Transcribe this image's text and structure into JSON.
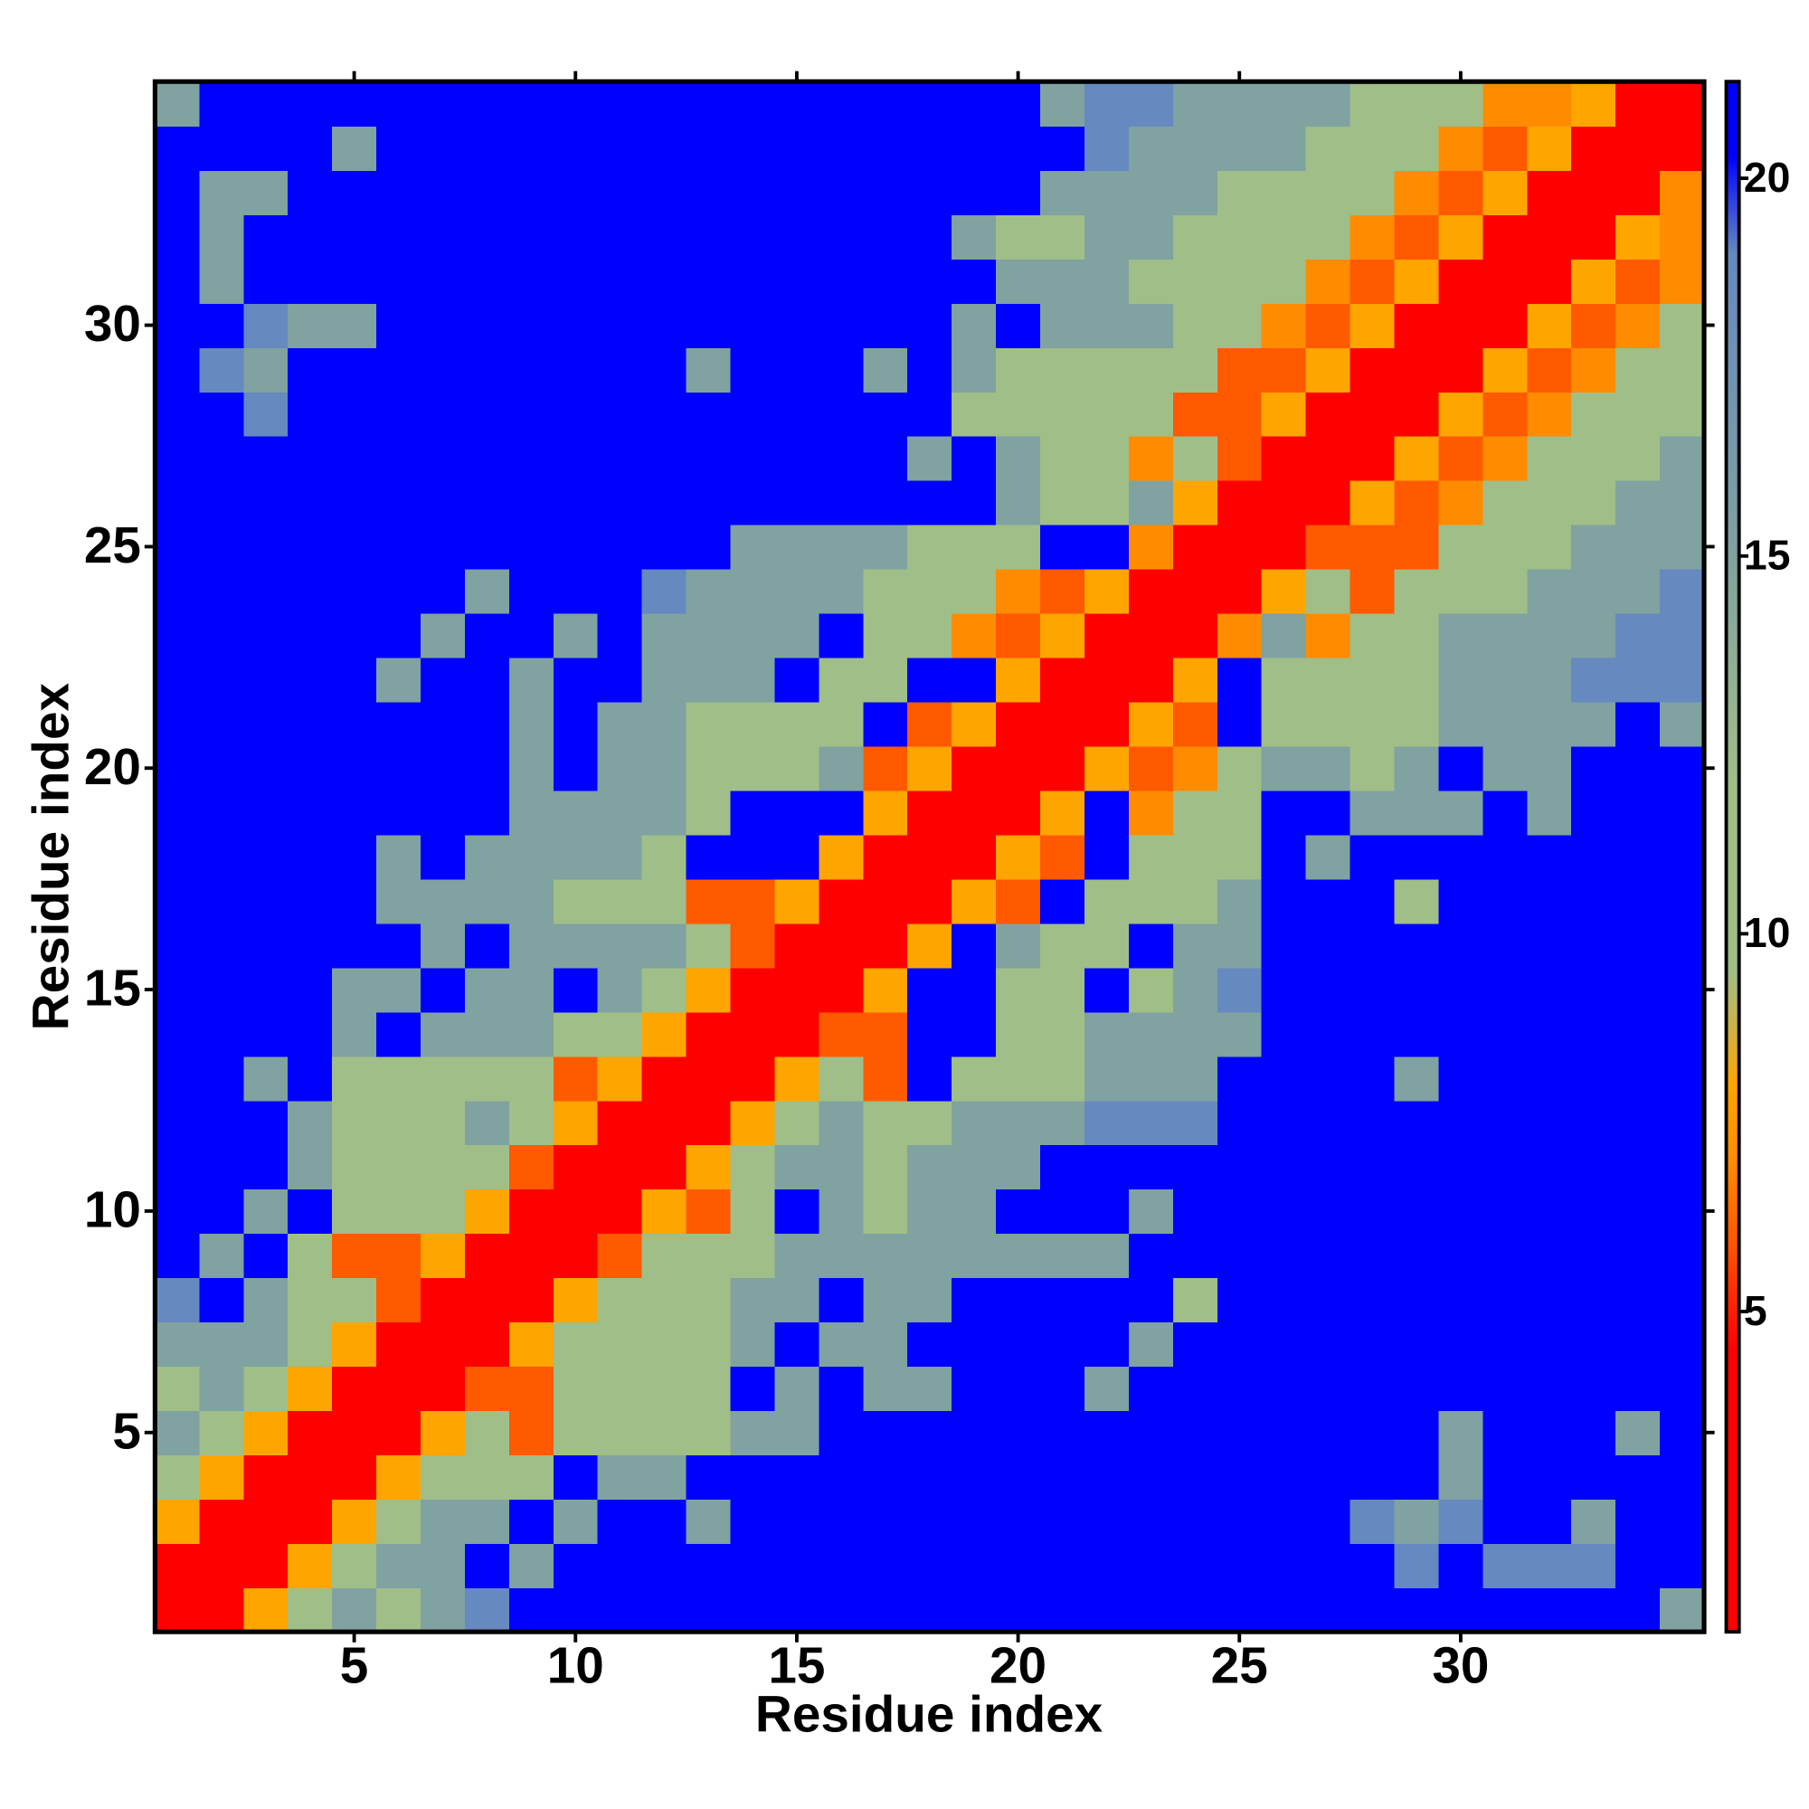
{
  "chart_data": {
    "type": "heatmap",
    "x_label": "Residue index",
    "y_label": "Residue index",
    "x": [
      1,
      2,
      3,
      4,
      5,
      6,
      7,
      8,
      9,
      10,
      11,
      12,
      13,
      14,
      15,
      16,
      17,
      18,
      19,
      20,
      21,
      22,
      23,
      24,
      25,
      26,
      27,
      28,
      29,
      30,
      31,
      32,
      33,
      34,
      35
    ],
    "y": [
      1,
      2,
      3,
      4,
      5,
      6,
      7,
      8,
      9,
      10,
      11,
      12,
      13,
      14,
      15,
      16,
      17,
      18,
      19,
      20,
      21,
      22,
      23,
      24,
      25,
      26,
      27,
      28,
      29,
      30,
      31,
      32,
      33,
      34,
      35
    ],
    "xlim": [
      0.5,
      35.5
    ],
    "ylim": [
      0.5,
      35.5
    ],
    "xticks": [
      5,
      10,
      15,
      20,
      25,
      30
    ],
    "yticks": [
      5,
      10,
      15,
      20,
      25,
      30
    ],
    "colorbar": {
      "zlim": [
        0.76,
        21.28
      ],
      "ticks": [
        5,
        10,
        15,
        20
      ]
    },
    "colorscale": [
      [
        0.76,
        "#ff0000"
      ],
      [
        4.5,
        "#ff0000"
      ],
      [
        6,
        "#ff5a00"
      ],
      [
        7,
        "#ff8c00"
      ],
      [
        8,
        "#ffa500"
      ],
      [
        9.5,
        "#a0be88"
      ],
      [
        12,
        "#a0be88"
      ],
      [
        15,
        "#80a2a0"
      ],
      [
        19,
        "#6689bf"
      ],
      [
        20.3,
        "#0000ff"
      ],
      [
        21.28,
        "#0000ff"
      ]
    ],
    "z": [
      [
        3,
        3,
        8,
        11,
        15,
        11,
        15,
        19,
        21,
        21,
        21,
        21,
        21,
        21,
        21,
        21,
        21,
        21,
        21,
        21,
        21,
        21,
        21,
        21,
        21,
        21,
        21,
        21,
        21,
        21,
        21,
        21,
        21,
        21,
        15
      ],
      [
        3,
        3,
        3,
        8,
        11,
        15,
        15,
        21,
        15,
        21,
        21,
        21,
        21,
        21,
        21,
        21,
        21,
        21,
        21,
        21,
        21,
        21,
        21,
        21,
        21,
        21,
        21,
        21,
        19,
        21,
        19,
        19,
        19,
        21,
        21
      ],
      [
        8,
        3,
        3,
        3,
        8,
        11,
        15,
        15,
        21,
        15,
        21,
        21,
        15,
        21,
        21,
        21,
        21,
        21,
        21,
        21,
        21,
        21,
        21,
        21,
        21,
        21,
        21,
        19,
        15,
        19,
        21,
        21,
        15,
        21,
        21
      ],
      [
        11,
        8,
        3,
        3,
        3,
        8,
        11,
        11,
        11,
        21,
        15,
        15,
        21,
        21,
        21,
        21,
        21,
        21,
        21,
        21,
        21,
        21,
        21,
        21,
        21,
        21,
        21,
        21,
        21,
        15,
        21,
        21,
        21,
        21,
        21
      ],
      [
        15,
        11,
        8,
        3,
        3,
        3,
        8,
        11,
        6,
        11,
        11,
        11,
        11,
        15,
        15,
        21,
        21,
        21,
        21,
        21,
        21,
        21,
        21,
        21,
        21,
        21,
        21,
        21,
        21,
        15,
        21,
        21,
        21,
        15,
        21
      ],
      [
        11,
        15,
        11,
        8,
        3,
        3,
        3,
        6,
        6,
        11,
        11,
        11,
        11,
        21,
        15,
        21,
        15,
        15,
        21,
        21,
        21,
        15,
        21,
        21,
        21,
        21,
        21,
        21,
        21,
        21,
        21,
        21,
        21,
        21,
        21
      ],
      [
        15,
        15,
        15,
        11,
        8,
        3,
        3,
        3,
        8,
        11,
        11,
        11,
        11,
        15,
        21,
        15,
        15,
        21,
        21,
        21,
        21,
        21,
        15,
        21,
        21,
        21,
        21,
        21,
        21,
        21,
        21,
        21,
        21,
        21,
        21
      ],
      [
        19,
        21,
        15,
        11,
        11,
        6,
        3,
        3,
        3,
        8,
        11,
        11,
        11,
        15,
        15,
        21,
        15,
        15,
        21,
        21,
        21,
        21,
        21,
        11,
        21,
        21,
        21,
        21,
        21,
        21,
        21,
        21,
        21,
        21,
        21
      ],
      [
        21,
        15,
        21,
        11,
        6,
        6,
        8,
        3,
        3,
        3,
        6,
        11,
        11,
        11,
        15,
        15,
        15,
        15,
        15,
        15,
        15,
        15,
        21,
        21,
        21,
        21,
        21,
        21,
        21,
        21,
        21,
        21,
        21,
        21,
        21
      ],
      [
        21,
        21,
        15,
        21,
        11,
        11,
        11,
        8,
        3,
        3,
        3,
        8,
        6,
        11,
        21,
        15,
        11,
        15,
        15,
        21,
        21,
        21,
        15,
        21,
        21,
        21,
        21,
        21,
        21,
        21,
        21,
        21,
        21,
        21,
        21
      ],
      [
        21,
        21,
        21,
        15,
        11,
        11,
        11,
        11,
        6,
        3,
        3,
        3,
        8,
        11,
        15,
        15,
        11,
        15,
        15,
        15,
        21,
        21,
        21,
        21,
        21,
        21,
        21,
        21,
        21,
        21,
        21,
        21,
        21,
        21,
        21
      ],
      [
        21,
        21,
        21,
        15,
        11,
        11,
        11,
        15,
        11,
        8,
        3,
        3,
        3,
        8,
        11,
        15,
        11,
        11,
        15,
        15,
        15,
        19,
        19,
        19,
        21,
        21,
        21,
        21,
        21,
        21,
        21,
        21,
        21,
        21,
        21
      ],
      [
        21,
        21,
        15,
        21,
        11,
        11,
        11,
        11,
        11,
        6,
        8,
        3,
        3,
        3,
        8,
        11,
        6,
        21,
        11,
        11,
        11,
        15,
        15,
        15,
        21,
        21,
        21,
        21,
        15,
        21,
        21,
        21,
        21,
        21,
        21
      ],
      [
        21,
        21,
        21,
        21,
        15,
        21,
        15,
        15,
        15,
        11,
        11,
        8,
        3,
        3,
        3,
        6,
        6,
        21,
        21,
        11,
        11,
        15,
        15,
        15,
        15,
        21,
        21,
        21,
        21,
        21,
        21,
        21,
        21,
        21,
        21
      ],
      [
        21,
        21,
        21,
        21,
        15,
        15,
        21,
        15,
        15,
        21,
        15,
        11,
        8,
        3,
        3,
        3,
        8,
        21,
        21,
        11,
        11,
        21,
        11,
        15,
        19,
        21,
        21,
        21,
        21,
        21,
        21,
        21,
        21,
        21,
        21
      ],
      [
        21,
        21,
        21,
        21,
        21,
        21,
        15,
        21,
        15,
        15,
        15,
        15,
        11,
        6,
        3,
        3,
        3,
        8,
        21,
        15,
        11,
        11,
        21,
        15,
        15,
        21,
        21,
        21,
        21,
        21,
        21,
        21,
        21,
        21,
        21
      ],
      [
        21,
        21,
        21,
        21,
        21,
        15,
        15,
        15,
        15,
        11,
        11,
        11,
        6,
        6,
        8,
        3,
        3,
        3,
        8,
        6,
        21,
        11,
        11,
        11,
        15,
        21,
        21,
        21,
        11,
        21,
        21,
        21,
        21,
        21,
        21
      ],
      [
        21,
        21,
        21,
        21,
        21,
        15,
        21,
        15,
        15,
        15,
        15,
        11,
        21,
        21,
        21,
        8,
        3,
        3,
        3,
        8,
        6,
        21,
        11,
        11,
        11,
        21,
        15,
        21,
        21,
        21,
        21,
        21,
        21,
        21,
        21
      ],
      [
        21,
        21,
        21,
        21,
        21,
        21,
        21,
        21,
        15,
        15,
        15,
        15,
        11,
        21,
        21,
        21,
        8,
        3,
        3,
        3,
        8,
        21,
        7,
        11,
        11,
        21,
        21,
        15,
        15,
        15,
        21,
        15,
        21,
        21,
        21
      ],
      [
        21,
        21,
        21,
        21,
        21,
        21,
        21,
        21,
        15,
        21,
        15,
        15,
        11,
        11,
        11,
        15,
        6,
        8,
        3,
        3,
        3,
        8,
        6,
        7,
        11,
        15,
        15,
        11,
        15,
        21,
        15,
        15,
        21,
        21,
        21
      ],
      [
        21,
        21,
        21,
        21,
        21,
        21,
        21,
        21,
        15,
        21,
        15,
        15,
        11,
        11,
        11,
        11,
        21,
        6,
        8,
        3,
        3,
        3,
        8,
        6,
        21,
        11,
        11,
        11,
        11,
        15,
        15,
        15,
        15,
        21,
        15
      ],
      [
        21,
        21,
        21,
        21,
        21,
        15,
        21,
        21,
        15,
        21,
        21,
        15,
        15,
        15,
        21,
        11,
        11,
        21,
        21,
        8,
        3,
        3,
        3,
        8,
        21,
        11,
        11,
        11,
        11,
        15,
        15,
        15,
        19,
        19,
        19
      ],
      [
        21,
        21,
        21,
        21,
        21,
        21,
        15,
        21,
        21,
        15,
        21,
        15,
        15,
        15,
        15,
        21,
        11,
        11,
        7,
        6,
        8,
        3,
        3,
        3,
        7,
        15,
        7,
        11,
        11,
        15,
        15,
        15,
        15,
        19,
        19
      ],
      [
        21,
        21,
        21,
        21,
        21,
        21,
        21,
        15,
        21,
        21,
        21,
        19,
        15,
        15,
        15,
        15,
        11,
        11,
        11,
        7,
        6,
        8,
        3,
        3,
        3,
        8,
        11,
        6,
        11,
        11,
        11,
        15,
        15,
        15,
        19
      ],
      [
        21,
        21,
        21,
        21,
        21,
        21,
        21,
        21,
        21,
        21,
        21,
        21,
        21,
        15,
        15,
        15,
        15,
        11,
        11,
        11,
        21,
        21,
        7,
        3,
        3,
        3,
        6,
        6,
        6,
        11,
        11,
        11,
        15,
        15,
        15
      ],
      [
        21,
        21,
        21,
        21,
        21,
        21,
        21,
        21,
        21,
        21,
        21,
        21,
        21,
        21,
        21,
        21,
        21,
        21,
        21,
        15,
        11,
        11,
        15,
        8,
        3,
        3,
        3,
        8,
        6,
        7,
        11,
        11,
        11,
        15,
        15
      ],
      [
        21,
        21,
        21,
        21,
        21,
        21,
        21,
        21,
        21,
        21,
        21,
        21,
        21,
        21,
        21,
        21,
        21,
        15,
        21,
        15,
        11,
        11,
        7,
        11,
        6,
        3,
        3,
        3,
        8,
        6,
        7,
        11,
        11,
        11,
        15
      ],
      [
        21,
        21,
        19,
        21,
        21,
        21,
        21,
        21,
        21,
        21,
        21,
        21,
        21,
        21,
        21,
        21,
        21,
        21,
        11,
        11,
        11,
        11,
        11,
        6,
        6,
        8,
        3,
        3,
        3,
        8,
        6,
        7,
        11,
        11,
        11
      ],
      [
        21,
        19,
        15,
        21,
        21,
        21,
        21,
        21,
        21,
        21,
        21,
        21,
        15,
        21,
        21,
        21,
        15,
        21,
        15,
        11,
        11,
        11,
        11,
        11,
        6,
        6,
        8,
        3,
        3,
        3,
        8,
        6,
        7,
        11,
        11
      ],
      [
        21,
        21,
        19,
        15,
        15,
        21,
        21,
        21,
        21,
        21,
        21,
        21,
        21,
        21,
        21,
        21,
        21,
        21,
        15,
        21,
        15,
        15,
        15,
        11,
        11,
        7,
        6,
        8,
        3,
        3,
        3,
        8,
        6,
        7,
        11
      ],
      [
        21,
        15,
        21,
        21,
        21,
        21,
        21,
        21,
        21,
        21,
        21,
        21,
        21,
        21,
        21,
        21,
        21,
        21,
        21,
        15,
        15,
        15,
        11,
        11,
        11,
        11,
        7,
        6,
        8,
        3,
        3,
        3,
        8,
        6,
        7
      ],
      [
        21,
        15,
        21,
        21,
        21,
        21,
        21,
        21,
        21,
        21,
        21,
        21,
        21,
        21,
        21,
        21,
        21,
        21,
        15,
        11,
        11,
        15,
        15,
        11,
        11,
        11,
        11,
        7,
        6,
        8,
        3,
        3,
        3,
        8,
        7
      ],
      [
        21,
        15,
        15,
        21,
        21,
        21,
        21,
        21,
        21,
        21,
        21,
        21,
        21,
        21,
        21,
        21,
        21,
        21,
        21,
        21,
        15,
        15,
        15,
        15,
        11,
        11,
        11,
        11,
        7,
        6,
        8,
        3,
        3,
        3,
        7
      ],
      [
        21,
        21,
        21,
        21,
        15,
        21,
        21,
        21,
        21,
        21,
        21,
        21,
        21,
        21,
        21,
        21,
        21,
        21,
        21,
        21,
        21,
        19,
        15,
        15,
        15,
        15,
        11,
        11,
        11,
        7,
        6,
        8,
        3,
        3,
        3
      ],
      [
        15,
        21,
        21,
        21,
        21,
        21,
        21,
        21,
        21,
        21,
        21,
        21,
        21,
        21,
        21,
        21,
        21,
        21,
        21,
        21,
        15,
        19,
        19,
        15,
        15,
        15,
        15,
        11,
        11,
        11,
        7,
        7,
        8,
        3,
        3
      ]
    ]
  }
}
